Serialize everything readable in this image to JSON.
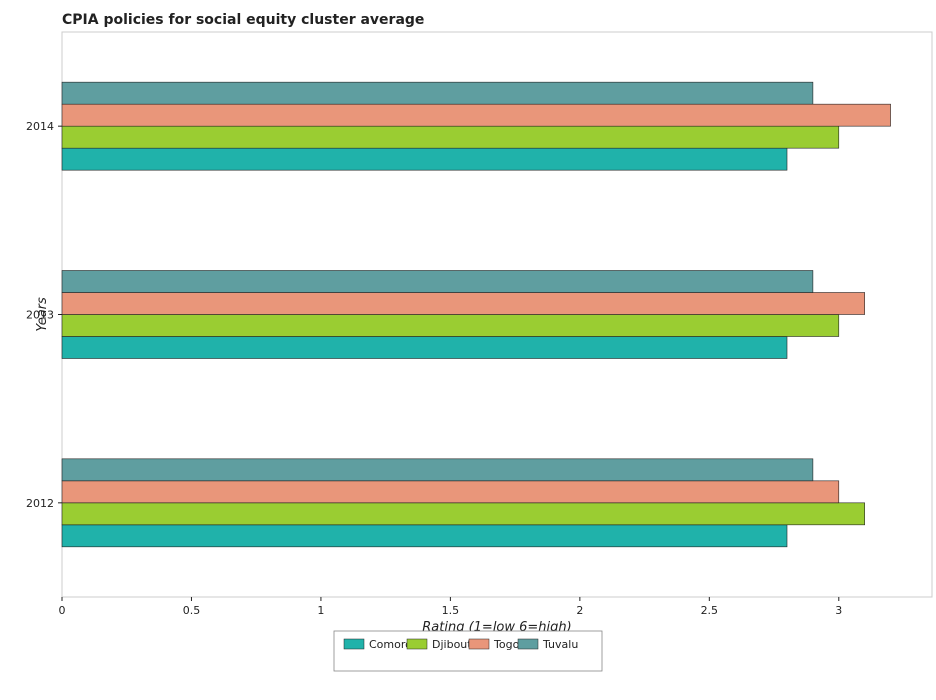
{
  "chart_data": {
    "type": "bar",
    "orientation": "horizontal",
    "title": "CPIA policies for social equity cluster average",
    "xlabel": "Rating (1=low 6=high)",
    "ylabel": "Years",
    "categories": [
      "2012",
      "2013",
      "2014"
    ],
    "xlim": [
      0,
      3.36
    ],
    "xticks": [
      "0",
      "0.5",
      "1",
      "1.5",
      "2",
      "2.5",
      "3"
    ],
    "xtick_values": [
      0,
      0.5,
      1,
      1.5,
      2,
      2.5,
      3
    ],
    "grid": false,
    "legend_position": "bottom",
    "series": [
      {
        "name": "Comoros",
        "color": "#20b2aa",
        "values": [
          2.8,
          2.8,
          2.8
        ]
      },
      {
        "name": "Djibouti",
        "color": "#9acd32",
        "values": [
          3.1,
          3.0,
          3.0
        ]
      },
      {
        "name": "Togo",
        "color": "#e9967a",
        "values": [
          3.0,
          3.1,
          3.2
        ]
      },
      {
        "name": "Tuvalu",
        "color": "#5f9ea0",
        "values": [
          2.9,
          2.9,
          2.9
        ]
      }
    ]
  }
}
